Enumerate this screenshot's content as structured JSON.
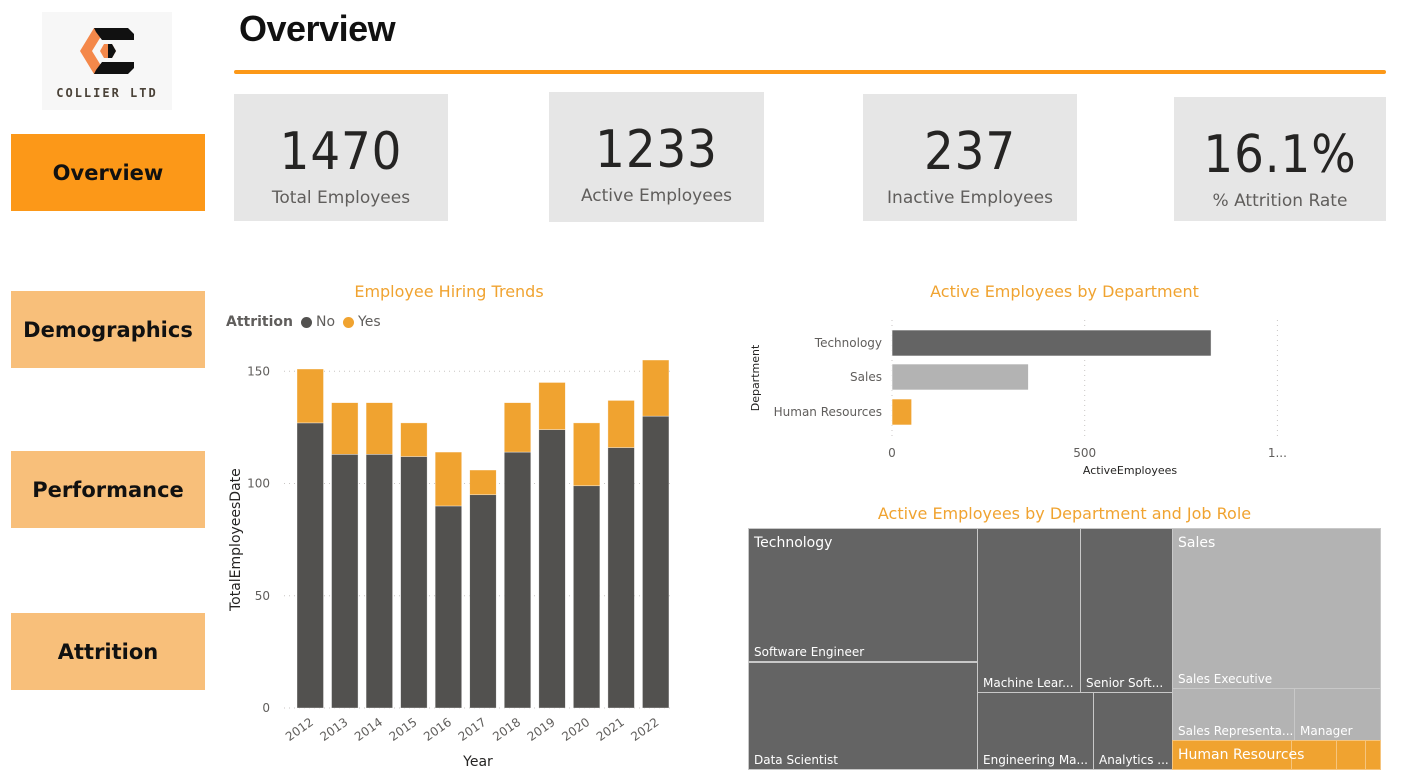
{
  "logo": {
    "company_name": "COLLIER LTD"
  },
  "nav": {
    "items": [
      {
        "label": "Overview",
        "active": true
      },
      {
        "label": "Demographics",
        "active": false
      },
      {
        "label": "Performance",
        "active": false
      },
      {
        "label": "Attrition",
        "active": false
      }
    ]
  },
  "header": {
    "title": "Overview"
  },
  "colors": {
    "accent": "#fc9818",
    "accent_light": "#f8bf7a",
    "chart_orange": "#f0a330",
    "dark_gray": "#52514f",
    "mid_gray": "#646464",
    "light_gray": "#b3b3b3",
    "kpi_bg": "#e6e6e6"
  },
  "kpis": [
    {
      "value": "1470",
      "label": "Total Employees"
    },
    {
      "value": "1233",
      "label": "Active Employees"
    },
    {
      "value": "237",
      "label": "Inactive Employees"
    },
    {
      "value": "16.1%",
      "label": "% Attrition Rate"
    }
  ],
  "chart_data": [
    {
      "type": "bar",
      "stacked": true,
      "title": "Employee Hiring Trends",
      "legend_title": "Attrition",
      "legend_position": "top-left",
      "xlabel": "Year",
      "ylabel": "TotalEmployeesDate",
      "ylim": [
        0,
        160
      ],
      "yticks": [
        0,
        50,
        100,
        150
      ],
      "grid": true,
      "categories": [
        "2012",
        "2013",
        "2014",
        "2015",
        "2016",
        "2017",
        "2018",
        "2019",
        "2020",
        "2021",
        "2022"
      ],
      "series": [
        {
          "name": "No",
          "color": "#52514f",
          "values": [
            127,
            113,
            113,
            112,
            90,
            95,
            114,
            124,
            99,
            116,
            130
          ]
        },
        {
          "name": "Yes",
          "color": "#f0a330",
          "values": [
            24,
            23,
            23,
            15,
            24,
            11,
            22,
            21,
            28,
            21,
            25
          ]
        }
      ]
    },
    {
      "type": "bar",
      "orientation": "horizontal",
      "title": "Active Employees by Department",
      "xlabel": "ActiveEmployees",
      "ylabel": "Department",
      "xlim": [
        0,
        1000
      ],
      "xticks": [
        "0",
        "500",
        "1..."
      ],
      "grid": true,
      "categories": [
        "Technology",
        "Sales",
        "Human Resources"
      ],
      "values": [
        828,
        354,
        51
      ],
      "colors": [
        "#646464",
        "#b3b3b3",
        "#f0a330"
      ]
    },
    {
      "type": "treemap",
      "title": "Active Employees by Department and Job Role",
      "groups": [
        {
          "name": "Technology",
          "children": [
            "Software Engineer",
            "Data Scientist",
            "Machine Lear...",
            "Senior Soft...",
            "Engineering Ma...",
            "Analytics ..."
          ]
        },
        {
          "name": "Sales",
          "children": [
            "Sales Executive",
            "Sales Representa...",
            "Manager"
          ]
        },
        {
          "name": "Human Resources",
          "children": []
        }
      ]
    }
  ]
}
